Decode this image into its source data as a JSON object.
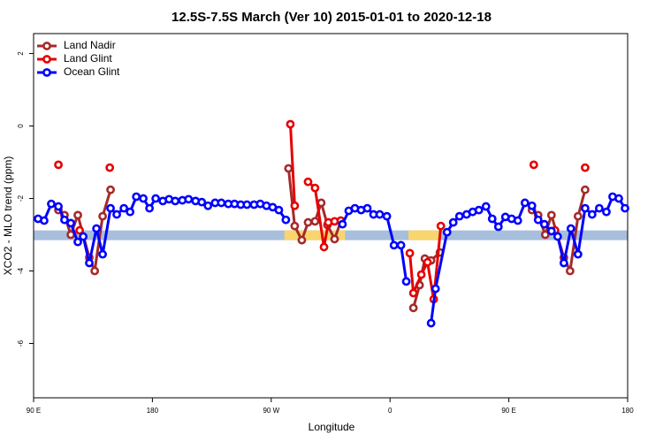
{
  "chart_data": {
    "type": "line",
    "title": "12.5S-7.5S March (Ver 10)   2015-01-01 to 2020-12-18",
    "x_label": "Longitude",
    "y_label": "XCO2 - MLO trend (ppm)",
    "xlim": [
      90,
      540
    ],
    "ylim": [
      -7.5,
      2.55
    ],
    "xticks": [
      {
        "value": 90,
        "label": "90 E"
      },
      180,
      {
        "value": 270,
        "label": "90 W"
      },
      {
        "value": 360,
        "label": "0"
      },
      {
        "value": 450,
        "label": "90 E"
      },
      {
        "value": 540,
        "label": "180"
      }
    ],
    "yticks": [
      -6,
      -4,
      -2,
      0,
      2
    ],
    "legend": "top-left",
    "reference_band": {
      "range": [
        -3.15,
        -2.88
      ],
      "color": "#a7bfdc",
      "land_color": "#f9d56e",
      "land_segments": [
        [
          280,
          326
        ],
        [
          374,
          397
        ]
      ]
    },
    "series": [
      {
        "name": "Land Nadir",
        "color": "#a52a2a",
        "x": [
          108.8,
          113.4,
          118.2,
          123.5,
          132.2,
          136.3,
          142.3,
          148.3,
          null,
          283.1,
          287.8,
          293.2,
          297.9,
          303.2,
          307.9,
          312.6,
          318.0,
          322.7,
          null,
          377.7,
          382.4,
          386.4,
          391.1,
          397.8,
          null,
          467.5,
          472.2,
          477.6,
          482.3,
          491.7,
          496.4,
          502.4,
          507.8
        ],
        "values": [
          -2.32,
          -2.46,
          -3.0,
          -2.46,
          -3.63,
          -4.0,
          -2.49,
          -1.76,
          null,
          -1.17,
          -2.76,
          -3.15,
          -2.66,
          -2.63,
          -2.12,
          -2.73,
          -3.12,
          -2.63,
          null,
          -5.02,
          -4.39,
          -3.66,
          -3.71,
          -3.49,
          null,
          -2.32,
          -2.46,
          -3.0,
          -2.46,
          -3.63,
          -4.0,
          -2.49,
          -1.76
        ]
      },
      {
        "name": "Land Glint",
        "color": "#e60000",
        "x": [
          108.8,
          null,
          124.9,
          null,
          147.7,
          null,
          284.5,
          287.8,
          null,
          297.9,
          303.2,
          310.0,
          313.3,
          318.0,
          322.7,
          null,
          375.0,
          377.7,
          383.7,
          388.4,
          393.1,
          398.5,
          null,
          468.9,
          null,
          485.0,
          null,
          507.8
        ],
        "values": [
          -1.07,
          null,
          -2.88,
          null,
          -1.15,
          null,
          0.05,
          -2.2,
          null,
          -1.54,
          -1.71,
          -3.34,
          -2.66,
          -2.63,
          -2.61,
          null,
          -3.51,
          -4.61,
          -4.1,
          -3.76,
          -4.78,
          -2.76,
          null,
          -1.07,
          null,
          -2.88,
          null,
          -1.15
        ]
      },
      {
        "name": "Ocean Glint",
        "color": "#0000ff",
        "x": [
          93.4,
          98.0,
          103.4,
          108.8,
          113.4,
          118.2,
          123.5,
          127.6,
          132.2,
          137.6,
          142.3,
          148.3,
          153.0,
          158.4,
          163.1,
          167.8,
          173.1,
          177.8,
          182.5,
          187.9,
          192.6,
          197.3,
          202.7,
          207.4,
          212.7,
          217.4,
          222.1,
          227.5,
          232.2,
          237.5,
          242.2,
          246.9,
          251.6,
          257.0,
          261.7,
          266.4,
          271.1,
          275.8,
          281.1,
          null,
          324.0,
          328.7,
          333.4,
          338.1,
          342.8,
          347.5,
          352.2,
          357.6,
          363.0,
          368.3,
          372.3,
          null,
          391.1,
          394.5,
          403.2,
          407.9,
          412.6,
          418.0,
          422.6,
          427.3,
          432.7,
          437.4,
          442.1,
          447.4,
          452.1,
          456.8,
          462.2,
          467.5,
          472.2,
          476.9,
          482.3,
          487.0,
          491.7,
          497.0,
          502.4,
          507.8,
          513.1,
          518.5,
          523.9,
          528.6,
          533.3,
          538.0
        ],
        "values": [
          -2.56,
          -2.61,
          -2.15,
          -2.22,
          -2.59,
          -2.68,
          -3.2,
          -3.05,
          -3.78,
          -2.83,
          -3.54,
          -2.27,
          -2.44,
          -2.27,
          -2.37,
          -1.95,
          -2.0,
          -2.27,
          -2.0,
          -2.07,
          -2.02,
          -2.07,
          -2.05,
          -2.02,
          -2.07,
          -2.1,
          -2.2,
          -2.12,
          -2.12,
          -2.15,
          -2.15,
          -2.17,
          -2.17,
          -2.17,
          -2.15,
          -2.2,
          -2.24,
          -2.32,
          -2.59,
          null,
          -2.71,
          -2.34,
          -2.27,
          -2.32,
          -2.27,
          -2.44,
          -2.44,
          -2.49,
          -3.29,
          -3.29,
          -4.29,
          null,
          -5.44,
          -4.49,
          -2.93,
          -2.66,
          -2.49,
          -2.44,
          -2.37,
          -2.32,
          -2.22,
          -2.56,
          -2.78,
          -2.51,
          -2.56,
          -2.61,
          -2.12,
          -2.2,
          -2.59,
          -2.71,
          -2.9,
          -3.05,
          -3.78,
          -2.83,
          -3.54,
          -2.27,
          -2.44,
          -2.27,
          -2.37,
          -1.95,
          -2.0,
          -2.27
        ]
      }
    ]
  }
}
